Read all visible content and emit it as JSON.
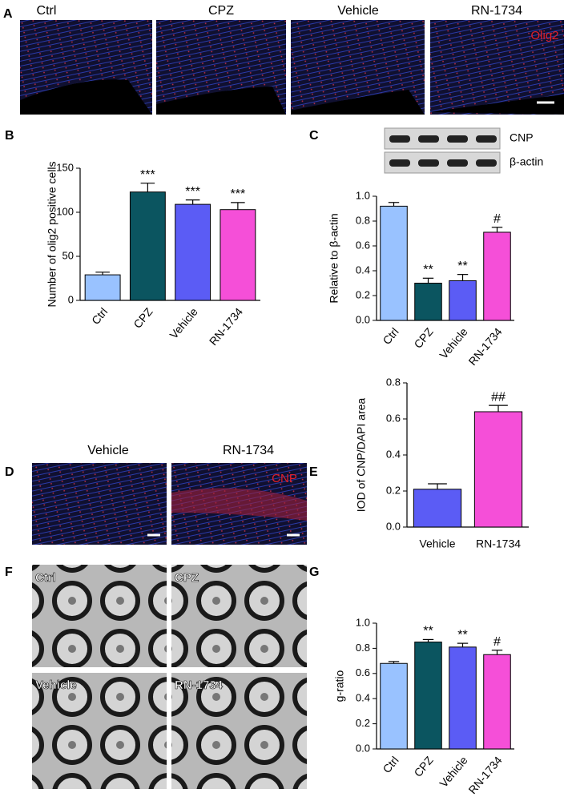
{
  "figure_a": {
    "letter": "A",
    "labels": [
      "Ctrl",
      "CPZ",
      "Vehicle",
      "RN-1734"
    ],
    "stain": "Olig2"
  },
  "figure_d": {
    "letter": "D",
    "labels": [
      "Vehicle",
      "RN-1734"
    ],
    "stain": "CNP"
  },
  "figure_f": {
    "letter": "F",
    "labels": [
      "Ctrl",
      "CPZ",
      "Vehicle",
      "RN-1734"
    ]
  },
  "chart_data": [
    {
      "type": "bar",
      "panel": "B",
      "y_label": "Number of olig2 positive cells",
      "categories": [
        "Ctrl",
        "CPZ",
        "Vehicle",
        "RN-1734"
      ],
      "values": [
        29,
        123,
        109,
        103
      ],
      "errors": [
        3,
        10,
        5,
        8
      ],
      "colors": [
        "#99c2ff",
        "#0b5560",
        "#5b5cf5",
        "#f54fd8"
      ],
      "annotations": [
        null,
        "***",
        "***",
        "***"
      ],
      "ylim": [
        0,
        150
      ],
      "yticks": [
        0,
        50,
        100,
        150
      ],
      "rotate_labels": true
    },
    {
      "type": "bar",
      "panel": "C",
      "y_label": "Relative to β-actin",
      "blot_labels": [
        "CNP",
        "β-actin"
      ],
      "categories": [
        "Ctrl",
        "CPZ",
        "Vehicle",
        "RN-1734"
      ],
      "values": [
        0.92,
        0.3,
        0.32,
        0.71
      ],
      "errors": [
        0.03,
        0.04,
        0.05,
        0.04
      ],
      "colors": [
        "#99c2ff",
        "#0b5560",
        "#5b5cf5",
        "#f54fd8"
      ],
      "annotations": [
        null,
        "**",
        "**",
        "#"
      ],
      "ylim": [
        0,
        1.0
      ],
      "yticks": [
        {
          "value": 0,
          "label": "0.0"
        },
        0.2,
        0.4,
        0.6,
        0.8,
        {
          "value": 1,
          "label": "1.0"
        }
      ],
      "rotate_labels": true
    },
    {
      "type": "bar",
      "panel": "E",
      "y_label": "IOD of CNP/DAPI area",
      "categories": [
        "Vehicle",
        "RN-1734"
      ],
      "values": [
        0.21,
        0.64
      ],
      "errors": [
        0.03,
        0.035
      ],
      "colors": [
        "#5b5cf5",
        "#f54fd8"
      ],
      "annotations": [
        null,
        "##"
      ],
      "ylim": [
        0,
        0.8
      ],
      "yticks": [
        {
          "value": 0,
          "label": "0.0"
        },
        0.2,
        0.4,
        0.6,
        0.8
      ],
      "rotate_labels": false
    },
    {
      "type": "bar",
      "panel": "G",
      "y_label": "g-ratio",
      "categories": [
        "Ctrl",
        "CPZ",
        "Vehicle",
        "RN-1734"
      ],
      "values": [
        0.68,
        0.85,
        0.81,
        0.75
      ],
      "errors": [
        0.015,
        0.02,
        0.03,
        0.035
      ],
      "colors": [
        "#99c2ff",
        "#0b5560",
        "#5b5cf5",
        "#f54fd8"
      ],
      "annotations": [
        null,
        "**",
        "**",
        "#"
      ],
      "ylim": [
        0,
        1.0
      ],
      "yticks": [
        {
          "value": 0,
          "label": "0.0"
        },
        0.2,
        0.4,
        0.6,
        0.8,
        {
          "value": 1,
          "label": "1.0"
        }
      ],
      "rotate_labels": true
    }
  ]
}
